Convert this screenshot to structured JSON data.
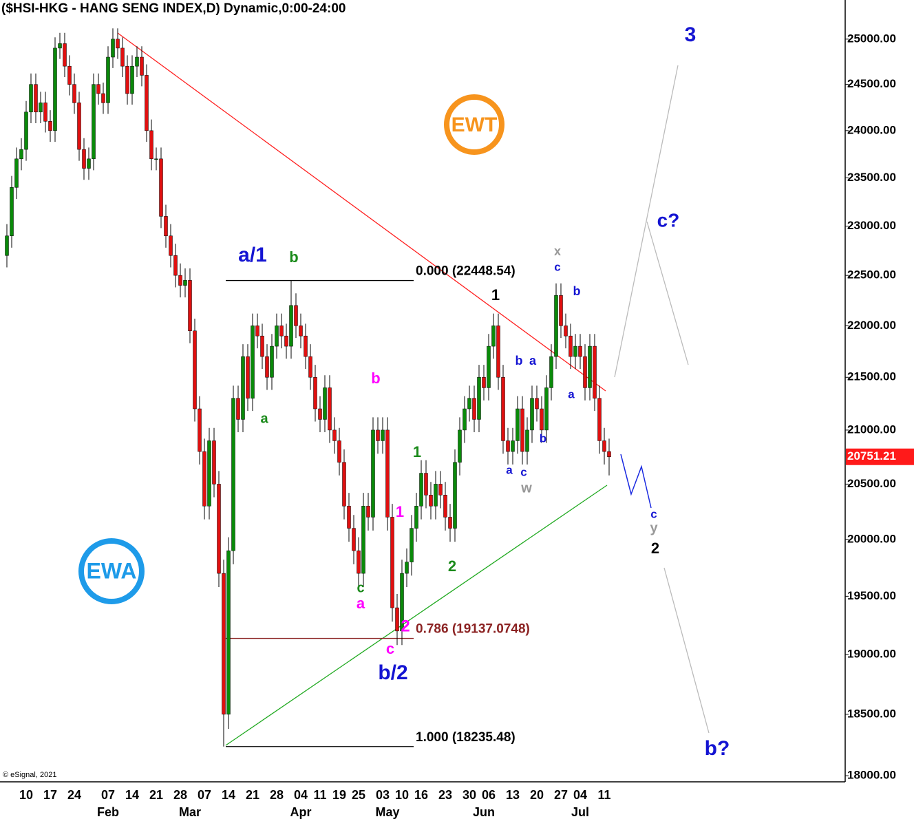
{
  "chart_data": {
    "type": "candlestick",
    "title": "($HSI-HKG - HANG SENG INDEX,D) Dynamic,0:00-24:00",
    "copyright": "© eSignal, 2021",
    "log_scale": true,
    "up_color": "#0a8a0a",
    "down_color": "#e01010",
    "ylim": [
      17940,
      25440
    ],
    "yticks": [
      {
        "value": 18000,
        "label": "18000.00"
      },
      {
        "value": 18500,
        "label": "18500.00"
      },
      {
        "value": 19000,
        "label": "19000.00"
      },
      {
        "value": 19500,
        "label": "19500.00"
      },
      {
        "value": 20000,
        "label": "20000.00"
      },
      {
        "value": 20500,
        "label": "20500.00"
      },
      {
        "value": 21000,
        "label": "21000.00"
      },
      {
        "value": 21500,
        "label": "21500.00"
      },
      {
        "value": 22000,
        "label": "22000.00"
      },
      {
        "value": 22500,
        "label": "22500.00"
      },
      {
        "value": 23000,
        "label": "23000.00"
      },
      {
        "value": 23500,
        "label": "23500.00"
      },
      {
        "value": 24000,
        "label": "24000.00"
      },
      {
        "value": 24500,
        "label": "24500.00"
      },
      {
        "value": 25000,
        "label": "25000.00"
      }
    ],
    "categories": [
      null,
      null,
      null,
      null,
      "10",
      null,
      null,
      null,
      null,
      "17",
      null,
      null,
      null,
      null,
      "24",
      null,
      null,
      null,
      null,
      null,
      null,
      "07",
      null,
      null,
      null,
      null,
      "14",
      null,
      null,
      null,
      null,
      "21",
      null,
      null,
      null,
      null,
      "28",
      null,
      null,
      null,
      null,
      "07",
      null,
      null,
      null,
      null,
      "14",
      null,
      null,
      null,
      null,
      "21",
      null,
      null,
      null,
      null,
      "28",
      null,
      null,
      null,
      null,
      "04",
      null,
      null,
      null,
      "11",
      null,
      null,
      null,
      "19",
      null,
      null,
      null,
      "25",
      null,
      null,
      null,
      null,
      "03",
      null,
      null,
      null,
      "10",
      null,
      null,
      null,
      "16",
      null,
      null,
      null,
      null,
      "23",
      null,
      null,
      null,
      null,
      "30",
      null,
      null,
      null,
      "06",
      null,
      null,
      null,
      null,
      "13",
      null,
      null,
      null,
      null,
      "20",
      null,
      null,
      null,
      null,
      "27",
      null,
      null,
      null,
      "04",
      null,
      null,
      null,
      null,
      "11",
      null
    ],
    "months": [
      null,
      null,
      null,
      null,
      null,
      null,
      null,
      null,
      null,
      null,
      null,
      null,
      null,
      null,
      null,
      null,
      null,
      null,
      null,
      null,
      null,
      "Feb",
      null,
      null,
      null,
      null,
      null,
      null,
      null,
      null,
      null,
      null,
      null,
      null,
      null,
      null,
      null,
      null,
      "Mar",
      null,
      null,
      null,
      null,
      null,
      null,
      null,
      null,
      null,
      null,
      null,
      null,
      null,
      null,
      null,
      null,
      null,
      null,
      null,
      null,
      null,
      null,
      "Apr",
      null,
      null,
      null,
      null,
      null,
      null,
      null,
      null,
      null,
      null,
      null,
      null,
      null,
      null,
      null,
      null,
      null,
      "May",
      null,
      null,
      null,
      null,
      null,
      null,
      null,
      null,
      null,
      null,
      null,
      null,
      null,
      null,
      null,
      null,
      null,
      null,
      null,
      "Jun",
      null,
      null,
      null,
      null,
      null,
      null,
      null,
      null,
      null,
      null,
      null,
      null,
      null,
      null,
      null,
      null,
      null,
      null,
      null,
      "Jul",
      null,
      null,
      null,
      null,
      null,
      null
    ],
    "open": [
      22700,
      22900,
      23400,
      23700,
      23800,
      24200,
      24500,
      24200,
      24300,
      24100,
      24000,
      24900,
      24950,
      24700,
      24500,
      24300,
      23800,
      23600,
      23700,
      24500,
      24400,
      24300,
      24800,
      25000,
      24900,
      24700,
      24400,
      24700,
      24800,
      24600,
      24000,
      23700,
      23700,
      23100,
      22900,
      22700,
      22500,
      22400,
      22450,
      21950,
      21200,
      20800,
      20300,
      20900,
      20500,
      19700,
      18500,
      19900,
      21300,
      21100,
      21700,
      21300,
      22000,
      21900,
      21700,
      21500,
      21800,
      22000,
      21900,
      21800,
      22200,
      22000,
      21900,
      21700,
      21500,
      21200,
      21100,
      21400,
      21000,
      20900,
      20700,
      20300,
      20100,
      19900,
      19700,
      20300,
      20200,
      21000,
      20900,
      21000,
      20200,
      19400,
      19200,
      19700,
      19800,
      20100,
      20300,
      20600,
      20400,
      20300,
      20500,
      20400,
      20200,
      20100,
      20700,
      21000,
      21200,
      21300,
      21100,
      21500,
      21400,
      21800,
      22000,
      21500,
      20900,
      20800,
      20900,
      21200,
      20800,
      21000,
      21300,
      21200,
      21000,
      21400,
      21700,
      22300,
      22000,
      21900,
      21700,
      21800,
      21700,
      21400,
      21800,
      21300,
      20900,
      20800
    ],
    "high": [
      23020,
      23520,
      23820,
      23920,
      24320,
      24620,
      24620,
      24420,
      24420,
      24220,
      25020,
      25070,
      25070,
      24820,
      24620,
      24420,
      23920,
      23820,
      24620,
      24620,
      24520,
      24920,
      25120,
      25120,
      25020,
      24820,
      24820,
      24920,
      24920,
      24720,
      24120,
      23820,
      23820,
      23220,
      23020,
      22820,
      22620,
      22570,
      22570,
      22070,
      21320,
      20920,
      21020,
      21020,
      20620,
      19820,
      20020,
      21420,
      21420,
      21820,
      21820,
      22120,
      22120,
      22020,
      21820,
      21920,
      22120,
      22120,
      22020,
      22448.54,
      22320,
      22120,
      22020,
      21820,
      21620,
      21320,
      21520,
      21520,
      21120,
      21020,
      20820,
      20420,
      20220,
      20020,
      20420,
      20420,
      21120,
      21120,
      21120,
      21120,
      20320,
      19520,
      19820,
      19920,
      20220,
      20420,
      20720,
      20720,
      20520,
      20620,
      20620,
      20520,
      20320,
      20820,
      21120,
      21320,
      21420,
      21420,
      21620,
      21620,
      21920,
      22120,
      22120,
      21620,
      21020,
      21020,
      21320,
      21320,
      21120,
      21420,
      21420,
      21320,
      21520,
      21820,
      22420,
      22420,
      22120,
      22020,
      21920,
      21920,
      21820,
      21920,
      21920,
      21420,
      21020,
      20920
    ],
    "low": [
      22580,
      22780,
      23280,
      23580,
      23680,
      24080,
      24080,
      24080,
      23980,
      23880,
      23880,
      24780,
      24580,
      24380,
      24180,
      23680,
      23480,
      23480,
      23580,
      24280,
      24180,
      24180,
      24680,
      24780,
      24580,
      24280,
      24280,
      24580,
      24480,
      23880,
      23580,
      23580,
      22980,
      22780,
      22580,
      22380,
      22280,
      22280,
      21830,
      21080,
      20680,
      20180,
      20180,
      20380,
      19580,
      18235.48,
      18380,
      19780,
      20980,
      20980,
      21180,
      21180,
      21780,
      21580,
      21380,
      21380,
      21680,
      21780,
      21680,
      21680,
      21880,
      21780,
      21580,
      21380,
      21080,
      20980,
      20980,
      20880,
      20780,
      20580,
      20180,
      19980,
      19780,
      19580,
      19580,
      20080,
      20080,
      20780,
      20780,
      20080,
      19280,
      19080,
      19080,
      19580,
      19680,
      19980,
      20180,
      20280,
      20180,
      20180,
      20280,
      20080,
      19980,
      19980,
      20580,
      20880,
      21080,
      20980,
      20980,
      21280,
      21280,
      21680,
      21380,
      20780,
      20680,
      20680,
      20780,
      20680,
      20680,
      20880,
      21080,
      20880,
      20880,
      21280,
      21580,
      21880,
      21780,
      21580,
      21580,
      21580,
      21280,
      21280,
      21180,
      20780,
      20680,
      20580
    ],
    "close": [
      22900,
      23400,
      23700,
      23800,
      24200,
      24500,
      24200,
      24300,
      24100,
      24000,
      24900,
      24950,
      24700,
      24500,
      24300,
      23800,
      23600,
      23700,
      24500,
      24400,
      24300,
      24800,
      25000,
      24900,
      24700,
      24400,
      24700,
      24800,
      24600,
      24000,
      23700,
      23700,
      23100,
      22900,
      22700,
      22500,
      22400,
      22450,
      21950,
      21200,
      20800,
      20300,
      20900,
      20500,
      19700,
      18500,
      19900,
      21300,
      21100,
      21700,
      21300,
      22000,
      21900,
      21700,
      21500,
      21800,
      22000,
      21900,
      21800,
      22200,
      22000,
      21900,
      21700,
      21500,
      21200,
      21100,
      21400,
      21000,
      20900,
      20700,
      20300,
      20100,
      19900,
      19700,
      20300,
      20200,
      21000,
      20900,
      21000,
      20200,
      19400,
      19200,
      19700,
      19800,
      20100,
      20300,
      20600,
      20400,
      20300,
      20500,
      20400,
      20200,
      20100,
      20700,
      21000,
      21200,
      21300,
      21100,
      21500,
      21400,
      21800,
      22000,
      21500,
      20900,
      20800,
      20900,
      21200,
      20800,
      21000,
      21300,
      21200,
      21000,
      21400,
      21700,
      22300,
      22000,
      21900,
      21700,
      21800,
      21700,
      21400,
      21800,
      21300,
      20900,
      20800,
      20751.21
    ],
    "fib_levels": [
      {
        "value": 22448.54,
        "label": "0.000 (22448.54)",
        "color": "#000000"
      },
      {
        "value": 19137.0748,
        "label": "0.786 (19137.0748)",
        "color": "#8b2222"
      },
      {
        "value": 18235.48,
        "label": "1.000 (18235.48)",
        "color": "#000000"
      }
    ],
    "logos": [
      "EWT",
      "EWA"
    ],
    "annotations": [
      {
        "text": "a/1",
        "color": "#1414d2"
      },
      {
        "text": "b",
        "color": "#1a8a1a"
      },
      {
        "text": "a",
        "color": "#1a8a1a"
      },
      {
        "text": "b",
        "color": "#ff00ff"
      },
      {
        "text": "c",
        "color": "#1a8a1a"
      },
      {
        "text": "a",
        "color": "#ff00ff"
      },
      {
        "text": "1",
        "color": "#ff00ff"
      },
      {
        "text": "2",
        "color": "#ff00ff"
      },
      {
        "text": "c",
        "color": "#ff00ff"
      },
      {
        "text": "b/2",
        "color": "#1414d2"
      },
      {
        "text": "1",
        "color": "#1a8a1a"
      },
      {
        "text": "2",
        "color": "#1a8a1a"
      },
      {
        "text": "1",
        "color": "#000000"
      },
      {
        "text": "x",
        "color": "#999999"
      },
      {
        "text": "c",
        "color": "#1414d2"
      },
      {
        "text": "b",
        "color": "#1414d2"
      },
      {
        "text": "b",
        "color": "#1414d2"
      },
      {
        "text": "a",
        "color": "#1414d2"
      },
      {
        "text": "a",
        "color": "#1414d2"
      },
      {
        "text": "b",
        "color": "#1414d2"
      },
      {
        "text": "a",
        "color": "#1414d2"
      },
      {
        "text": "c",
        "color": "#1414d2"
      },
      {
        "text": "w",
        "color": "#999999"
      },
      {
        "text": "3",
        "color": "#1414d2"
      },
      {
        "text": "c?",
        "color": "#1414d2"
      },
      {
        "text": "c",
        "color": "#1414d2"
      },
      {
        "text": "y",
        "color": "#999999"
      },
      {
        "text": "2",
        "color": "#000000"
      },
      {
        "text": "b?",
        "color": "#1414d2"
      }
    ]
  }
}
